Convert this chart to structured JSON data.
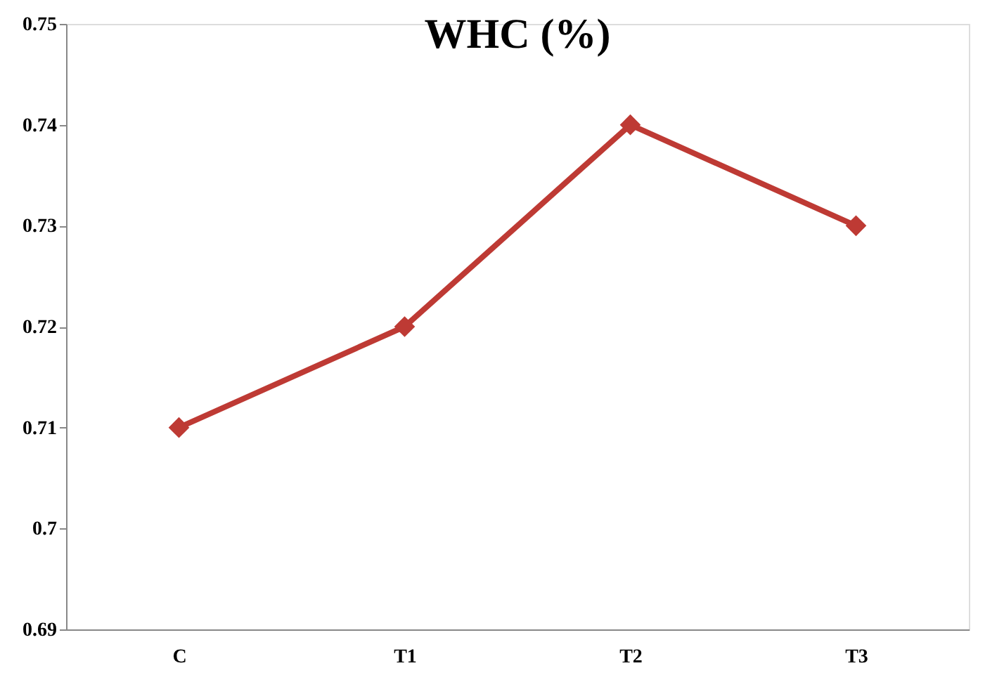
{
  "chart_data": {
    "type": "line",
    "title": "WHC (%)",
    "categories": [
      "C",
      "T1",
      "T2",
      "T3"
    ],
    "series": [
      {
        "color": "#be3a34",
        "values": [
          0.71,
          0.72,
          0.74,
          0.73
        ]
      }
    ],
    "ylim": [
      0.69,
      0.75
    ],
    "yticks": [
      0.69,
      0.7,
      0.71,
      0.72,
      0.73,
      0.74,
      0.75
    ],
    "marker": "diamond",
    "line_style": "solid",
    "grid": false,
    "legend": false
  }
}
